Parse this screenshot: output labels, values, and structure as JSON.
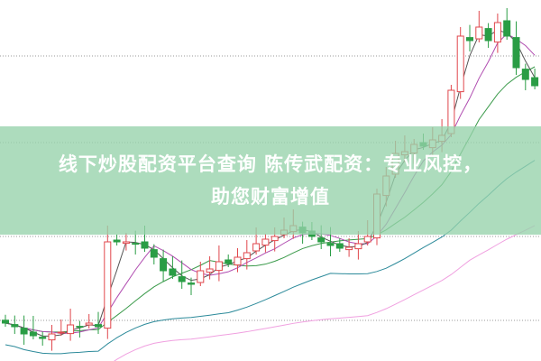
{
  "banner": {
    "line1": "线下炒股配资平台查询 陈传武配资：专业风控，",
    "line2": "助您财富增值"
  },
  "chart_data": {
    "type": "candlestick",
    "title": "",
    "grid": "dotted horizontal",
    "colors": {
      "up": "#e0474c",
      "down": "#2a9d45",
      "ma5": "#555555",
      "ma10": "#b04cb0",
      "ma20": "#3a9a4a",
      "ma60": "#2c8a9a",
      "ma120": "#f0a0e0"
    },
    "close": [
      10.5,
      9.5,
      7.5,
      7,
      6.25,
      7.5,
      8,
      10,
      9.5,
      10.5,
      9.5,
      33,
      33,
      33,
      32.5,
      31.25,
      28.75,
      25,
      23.75,
      22,
      21.25,
      25,
      25.5,
      27.5,
      27,
      28.75,
      30,
      32.5,
      33.75,
      34.5,
      36.25,
      37.5,
      35.5,
      34.5,
      33,
      32,
      31.25,
      31.5,
      32.5,
      34.5,
      46.25,
      51.25,
      57.5,
      58,
      60,
      59.5,
      61.25,
      62.5,
      75,
      90,
      88.75,
      92.5,
      88.75,
      93.75,
      90,
      81.25,
      78,
      76.25
    ]
  }
}
